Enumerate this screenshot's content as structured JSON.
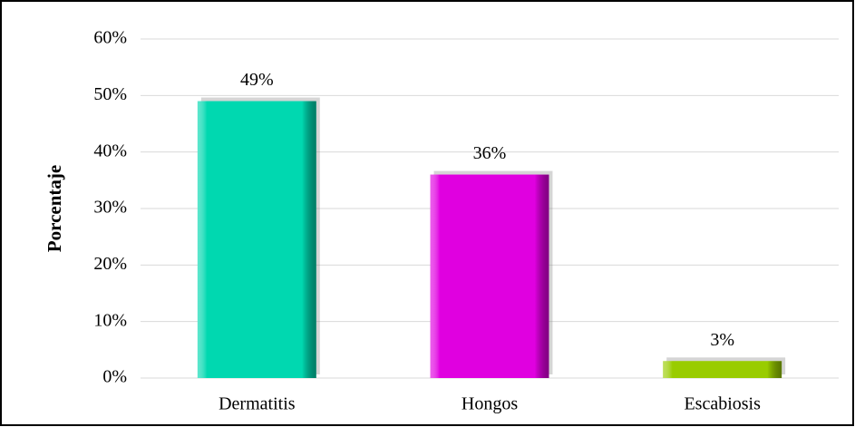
{
  "chart_data": {
    "type": "bar",
    "y_label": "Porcentaje",
    "categories": [
      "Dermatitis",
      "Hongos",
      "Escabiosis"
    ],
    "values": [
      49,
      36,
      3
    ],
    "value_labels": [
      "49%",
      "36%",
      "3%"
    ],
    "colors": [
      "#00d8b0",
      "#e000e0",
      "#99cc00"
    ],
    "ylim": [
      0,
      60
    ],
    "yticks": [
      {
        "value": 0,
        "label": "0%"
      },
      {
        "value": 10,
        "label": "10%"
      },
      {
        "value": 20,
        "label": "20%"
      },
      {
        "value": 30,
        "label": "30%"
      },
      {
        "value": 40,
        "label": "40%"
      },
      {
        "value": 50,
        "label": "50%"
      },
      {
        "value": 60,
        "label": "60%"
      }
    ],
    "grid": true
  }
}
